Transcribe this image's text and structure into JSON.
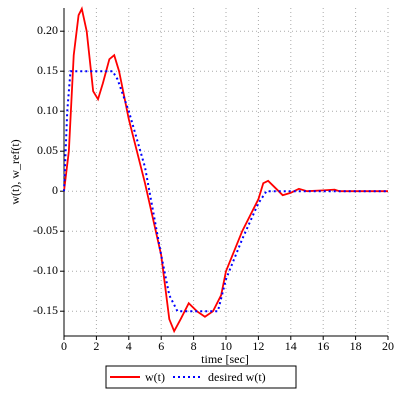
{
  "chart_data": {
    "type": "line",
    "xlabel": "time [sec]",
    "ylabel": "w(t), w_ref(t)",
    "xlim": [
      0,
      20
    ],
    "ylim": [
      -0.181,
      0.229
    ],
    "xticks": [
      0,
      2,
      4,
      6,
      8,
      10,
      12,
      14,
      16,
      18,
      20
    ],
    "yticks": [
      {
        "value": 0.2,
        "label": "0.20"
      },
      0.15,
      {
        "value": 0.1,
        "label": "0.10"
      },
      0.05,
      0,
      -0.05,
      {
        "value": -0.1,
        "label": "-0.10"
      },
      -0.15
    ],
    "grid": true,
    "legend": "bottom",
    "series": [
      {
        "name": "w(t)",
        "color": "#ff0000",
        "style": "solid",
        "x": [
          0,
          0.3,
          0.6,
          0.9,
          1.1,
          1.4,
          1.8,
          2.1,
          2.4,
          2.8,
          3.1,
          3.4,
          4,
          5,
          6,
          6.5,
          6.8,
          7.2,
          7.7,
          8.2,
          8.7,
          9.2,
          9.7,
          10,
          11,
          12,
          12.3,
          12.6,
          13,
          13.5,
          14,
          14.5,
          15,
          16,
          16.7,
          17,
          20
        ],
        "values": [
          0,
          0.05,
          0.17,
          0.22,
          0.228,
          0.2,
          0.125,
          0.115,
          0.135,
          0.165,
          0.17,
          0.15,
          0.09,
          0.01,
          -0.08,
          -0.16,
          -0.175,
          -0.16,
          -0.14,
          -0.15,
          -0.157,
          -0.15,
          -0.13,
          -0.1,
          -0.05,
          -0.01,
          0.01,
          0.013,
          0.005,
          -0.005,
          -0.002,
          0.003,
          0,
          0.001,
          0.002,
          0,
          0
        ]
      },
      {
        "name": "desired w(t)",
        "color": "#0000ff",
        "style": "dotted",
        "x": [
          0,
          0.2,
          0.4,
          3.0,
          3.3,
          4,
          5,
          6,
          6.5,
          7,
          9.5,
          10,
          11,
          12,
          12.5,
          20
        ],
        "values": [
          0,
          0.1,
          0.15,
          0.15,
          0.14,
          0.1,
          0.03,
          -0.08,
          -0.13,
          -0.15,
          -0.15,
          -0.11,
          -0.06,
          -0.015,
          0,
          0
        ]
      }
    ]
  }
}
